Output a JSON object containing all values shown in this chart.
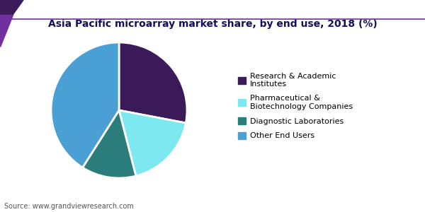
{
  "title": "Asia Pacific microarray market share, by end use, 2018 (%)",
  "title_color": "#1a0a5e",
  "source_text": "Source: www.grandviewresearch.com",
  "slices": [
    {
      "label": "Research & Academic\nInstitutes",
      "value": 28,
      "color": "#3b1a5a"
    },
    {
      "label": "Pharmaceutical &\nBiotechnology Companies",
      "value": 18,
      "color": "#7de8f0"
    },
    {
      "label": "Diagnostic Laboratories",
      "value": 13,
      "color": "#2a7d7b"
    },
    {
      "label": "Other End Users",
      "value": 41,
      "color": "#4a9fd4"
    }
  ],
  "background_color": "#ffffff",
  "startangle": 90,
  "wedge_linewidth": 2.0,
  "wedge_edgecolor": "#ffffff",
  "title_fontsize": 10,
  "legend_fontsize": 8,
  "header_line_color": "#7030a0",
  "header_dark_color": "#3b1a5a",
  "header_mid_color": "#7030a0"
}
